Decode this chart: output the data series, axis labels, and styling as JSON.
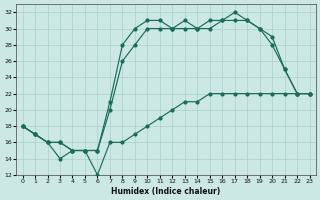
{
  "xlabel": "Humidex (Indice chaleur)",
  "bg_color": "#cce8e5",
  "line_color": "#1a6b5a",
  "grid_color": "#aad0cc",
  "xlim": [
    -0.5,
    23.5
  ],
  "ylim": [
    12,
    33
  ],
  "xticks": [
    0,
    1,
    2,
    3,
    4,
    5,
    6,
    7,
    8,
    9,
    10,
    11,
    12,
    13,
    14,
    15,
    16,
    17,
    18,
    19,
    20,
    21,
    22,
    23
  ],
  "yticks": [
    12,
    14,
    16,
    18,
    20,
    22,
    24,
    26,
    28,
    30,
    32
  ],
  "line1_x": [
    0,
    1,
    2,
    3,
    4,
    5,
    6,
    7,
    8,
    9,
    10,
    11,
    12,
    13,
    14,
    15,
    16,
    17,
    18,
    19,
    20,
    21,
    22,
    23
  ],
  "line1_y": [
    18,
    17,
    16,
    14,
    15,
    15,
    12,
    16,
    16,
    17,
    18,
    19,
    20,
    21,
    21,
    22,
    22,
    22,
    22,
    22,
    22,
    22,
    22,
    22
  ],
  "line2_x": [
    0,
    1,
    2,
    3,
    4,
    5,
    6,
    7,
    8,
    9,
    10,
    11,
    12,
    13,
    14,
    15,
    16,
    17,
    18,
    19,
    20,
    21,
    22,
    23
  ],
  "line2_y": [
    18,
    17,
    16,
    16,
    15,
    15,
    15,
    21,
    28,
    30,
    31,
    31,
    30,
    31,
    30,
    31,
    31,
    32,
    31,
    30,
    29,
    25,
    22,
    22
  ],
  "line3_x": [
    0,
    1,
    2,
    3,
    4,
    5,
    6,
    7,
    8,
    9,
    10,
    11,
    12,
    13,
    14,
    15,
    16,
    17,
    18,
    19,
    20,
    21,
    22,
    23
  ],
  "line3_y": [
    18,
    17,
    16,
    16,
    15,
    15,
    15,
    20,
    26,
    28,
    30,
    30,
    30,
    30,
    30,
    30,
    31,
    31,
    31,
    30,
    28,
    25,
    22,
    22
  ]
}
